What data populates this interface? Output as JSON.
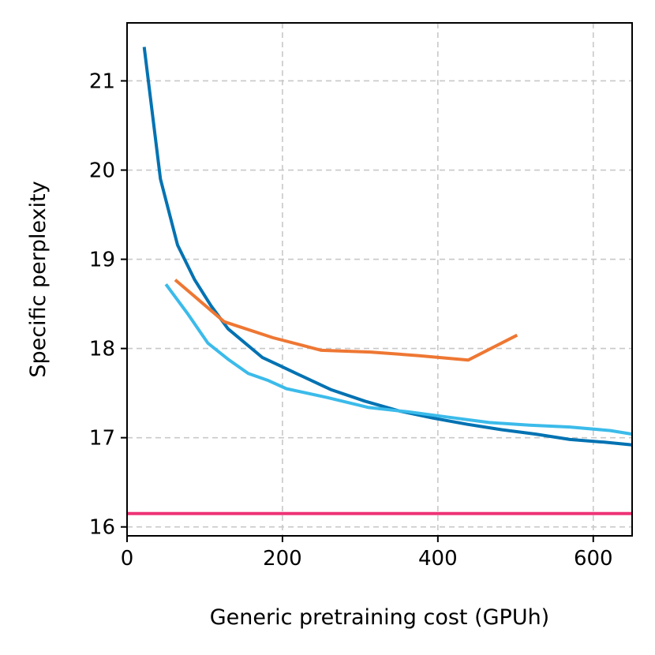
{
  "chart_data": {
    "type": "line",
    "title": "",
    "xlabel": "Generic pretraining cost (GPUh)",
    "ylabel": "Specific perplexity",
    "xlim": [
      0,
      650
    ],
    "ylim": [
      15.9,
      21.65
    ],
    "xticks": [
      0,
      200,
      400,
      600
    ],
    "yticks": [
      16,
      17,
      18,
      19,
      20,
      21
    ],
    "xtick_labels": [
      "0",
      "200",
      "400",
      "600"
    ],
    "ytick_labels": [
      "16",
      "17",
      "18",
      "19",
      "20",
      "21"
    ],
    "grid": true,
    "series": [
      {
        "name": "series-dark-blue",
        "color": "#0072b2",
        "x": [
          22,
          43,
          65,
          87,
          108,
          130,
          152,
          174,
          196,
          218,
          262,
          306,
          350,
          394,
          438,
          482,
          526,
          570,
          614,
          650
        ],
        "y": [
          21.38,
          19.9,
          19.16,
          18.77,
          18.48,
          18.22,
          18.06,
          17.9,
          17.81,
          17.72,
          17.54,
          17.41,
          17.3,
          17.22,
          17.15,
          17.09,
          17.04,
          16.98,
          16.95,
          16.92
        ]
      },
      {
        "name": "series-light-blue",
        "color": "#3bbbea",
        "x": [
          50,
          78,
          104,
          130,
          156,
          182,
          205,
          258,
          310,
          362,
          414,
          466,
          518,
          570,
          622,
          650
        ],
        "y": [
          18.72,
          18.39,
          18.06,
          17.88,
          17.72,
          17.64,
          17.55,
          17.45,
          17.34,
          17.29,
          17.23,
          17.17,
          17.14,
          17.12,
          17.08,
          17.04
        ]
      },
      {
        "name": "series-orange",
        "color": "#ee7733",
        "x": [
          62,
          125,
          188,
          250,
          313,
          376,
          439,
          502
        ],
        "y": [
          18.77,
          18.3,
          18.12,
          17.98,
          17.96,
          17.92,
          17.87,
          18.15
        ]
      },
      {
        "name": "baseline",
        "color": "#ee3377",
        "x": [
          0,
          650
        ],
        "y": [
          16.15,
          16.15
        ]
      }
    ]
  }
}
